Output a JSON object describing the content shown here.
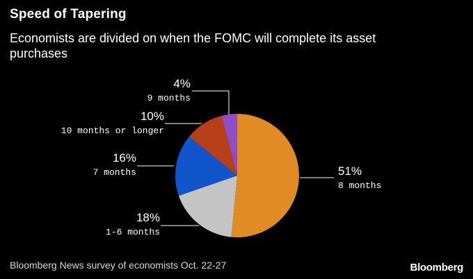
{
  "header": {
    "title": "Speed of Tapering",
    "subtitle": "Economists are divided on when the FOMC will complete its asset purchases"
  },
  "chart_data": {
    "type": "pie",
    "title": "Speed of Tapering",
    "subtitle": "Economists are divided on when the FOMC will complete its asset purchases",
    "slices": [
      {
        "label": "8 months",
        "value": 51,
        "display": "51%",
        "color": "#e08b24"
      },
      {
        "label": "1-6 months",
        "value": 18,
        "display": "18%",
        "color": "#c4c4c4"
      },
      {
        "label": "7 months",
        "value": 16,
        "display": "16%",
        "color": "#1155cc"
      },
      {
        "label": "10 months or longer",
        "value": 10,
        "display": "10%",
        "color": "#b7401b"
      },
      {
        "label": "9 months",
        "value": 4,
        "display": "4%",
        "color": "#8e4fc4"
      }
    ]
  },
  "footer": {
    "source": "Bloomberg News survey of economists Oct. 22-27",
    "brand": "Bloomberg"
  }
}
